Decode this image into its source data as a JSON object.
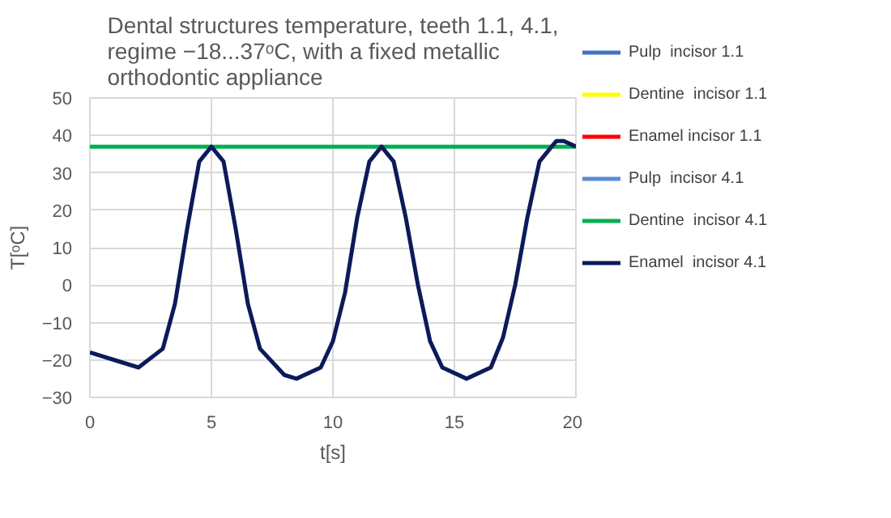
{
  "chart_data": {
    "type": "line",
    "title": "Dental structures temperature, teeth 1.1, 4.1, regime −18...37ᵒC, with a fixed metallic orthodontic appliance",
    "xlabel": "t[s]",
    "ylabel": "T[ᵒC]",
    "x": [
      0,
      1,
      2,
      3,
      3.5,
      4,
      4.5,
      5,
      5.5,
      6,
      6.5,
      7,
      8,
      8.5,
      9.5,
      10,
      10.5,
      11,
      11.5,
      12,
      12.5,
      13,
      13.5,
      14,
      14.5,
      15.5,
      16.5,
      17,
      17.5,
      18,
      18.5,
      19,
      19.2,
      19.5,
      20
    ],
    "series": [
      {
        "name": "Pulp  incisor 1.1",
        "color": "#4472c4",
        "values": [
          null,
          null,
          null,
          null,
          null,
          null,
          null,
          null,
          null,
          null,
          null,
          null,
          null,
          null,
          null,
          null,
          null,
          null,
          null,
          null,
          null,
          null,
          null,
          null,
          null,
          null,
          null,
          null,
          null,
          null,
          null,
          null,
          null,
          null,
          null
        ]
      },
      {
        "name": "Dentine  incisor 1.1",
        "color": "#ffff00",
        "values": [
          null,
          null,
          null,
          null,
          null,
          null,
          null,
          null,
          null,
          null,
          null,
          null,
          null,
          null,
          null,
          null,
          null,
          null,
          null,
          null,
          null,
          null,
          null,
          null,
          null,
          null,
          null,
          null,
          null,
          null,
          null,
          null,
          null,
          null,
          null
        ]
      },
      {
        "name": "Enamel incisor 1.1",
        "color": "#ff0000",
        "values": [
          null,
          null,
          null,
          null,
          null,
          null,
          null,
          null,
          null,
          null,
          null,
          null,
          null,
          null,
          null,
          null,
          null,
          null,
          null,
          null,
          null,
          null,
          null,
          null,
          null,
          null,
          null,
          null,
          null,
          null,
          null,
          null,
          null,
          null,
          null
        ]
      },
      {
        "name": "Pulp  incisor 4.1",
        "color": "#5b8bd6",
        "values": [
          null,
          null,
          null,
          null,
          null,
          null,
          null,
          null,
          null,
          null,
          null,
          null,
          null,
          null,
          null,
          null,
          null,
          null,
          null,
          null,
          null,
          null,
          null,
          null,
          null,
          null,
          null,
          null,
          null,
          null,
          null,
          null,
          null,
          null,
          null
        ]
      },
      {
        "name": "Dentine  incisor 4.1",
        "color": "#00b050",
        "x": [
          0,
          20
        ],
        "values": [
          37,
          37
        ]
      },
      {
        "name": "Enamel  incisor 4.1",
        "color": "#0d1a5a",
        "values": [
          -18,
          -20,
          -22,
          -17,
          -5,
          15,
          33,
          37,
          33,
          15,
          -5,
          -17,
          -24,
          -25,
          -22,
          -15,
          -2,
          18,
          33,
          37,
          33,
          18,
          0,
          -15,
          -22,
          -25,
          -22,
          -14,
          0,
          18,
          33,
          37,
          38.5,
          38.5,
          37
        ]
      }
    ],
    "xlim": [
      0,
      20
    ],
    "xticks": [
      0,
      5,
      10,
      15,
      20
    ],
    "ylim": [
      -30,
      50
    ],
    "yticks": [
      -30,
      -20,
      -10,
      0,
      10,
      20,
      30,
      40,
      50
    ],
    "grid": true,
    "legend": "right"
  }
}
